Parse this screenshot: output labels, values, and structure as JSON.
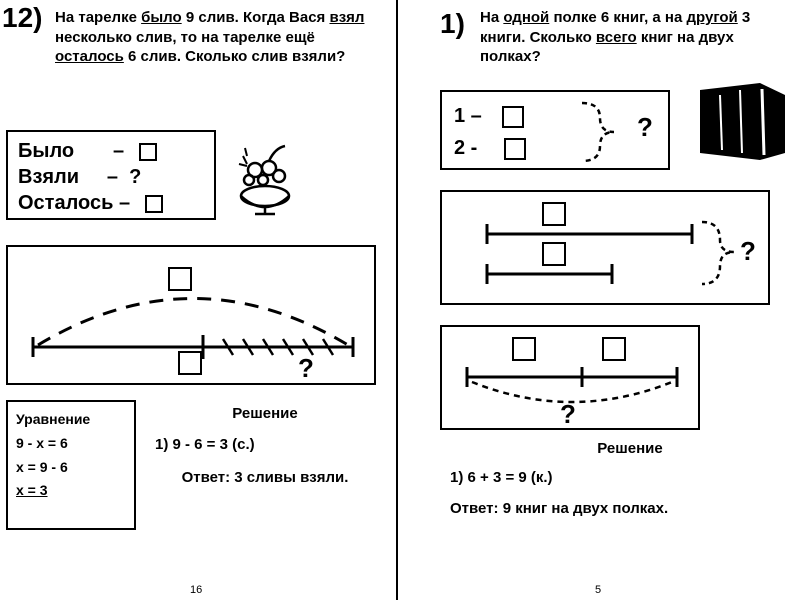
{
  "left": {
    "number": "12)",
    "problem_html": "На тарелке <span class='u'>было</span> 9 слив. Когда Вася <span class='u'>взял</span> несколько слив, то на тарелке ещё <span class='u'>осталось</span> 6 слив. Сколько слив взяли?",
    "bylo": "Было",
    "vzyali": "Взяли",
    "ostalos": "Осталось",
    "dash": "–",
    "qmark": "?",
    "equation_title": "Уравнение",
    "eq1": "9 - x = 6",
    "eq2": "x = 9 - 6",
    "eq3": "x = 3",
    "solution_title": "Решение",
    "sol1": "1) 9 - 6 = 3 (с.)",
    "answer": "Ответ: 3 сливы взяли.",
    "pagenum": "16"
  },
  "right": {
    "number": "1)",
    "problem_html": "На <span class='u'>одной</span> полке 6 книг, а на <span class='u'>другой</span> 3 книги. Сколько <span class='u'>всего</span> книг на двух полках?",
    "row1": "1 –",
    "row2": "2 -",
    "qmark": "?",
    "solution_title": "Решение",
    "sol1": "1) 6 + 3 = 9 (к.)",
    "answer": "Ответ: 9 книг на двух полках.",
    "pagenum": "5"
  },
  "colors": {
    "ink": "#000000",
    "bg": "#ffffff"
  }
}
